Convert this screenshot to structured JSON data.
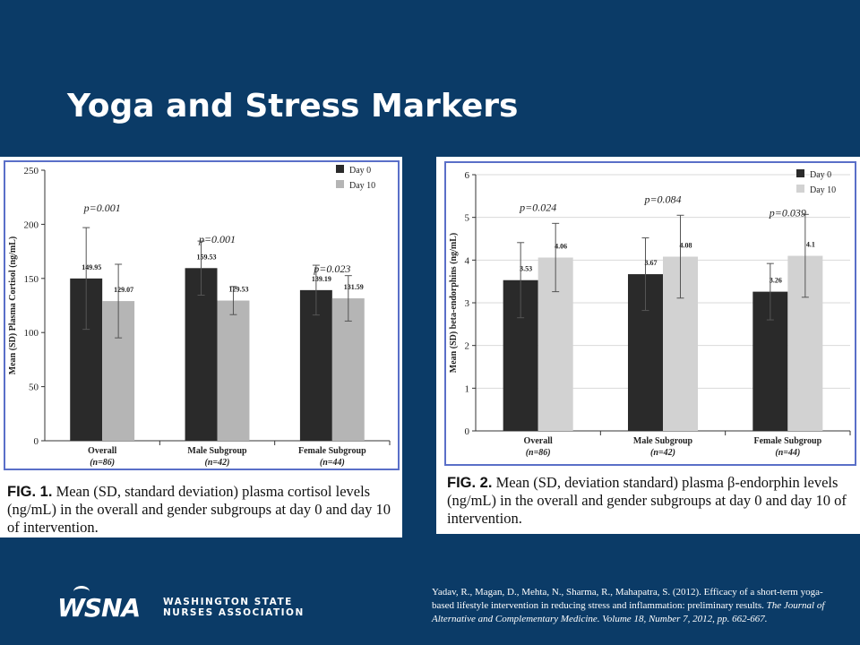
{
  "slide": {
    "title": "Yoga and Stress Markers",
    "citation_line1": "Yadav, R., Magan, D., Mehta, N., Sharma, R., Mahapatra, S. (2012). Efficacy of a short-term yoga-based lifestyle intervention in reducing stress and inflammation: preliminary results.",
    "citation_journal": "The Journal of Alternative and Complementary Medicine. Volume 18, Number 7, 2012, pp. 662-667.",
    "logo_mark": "WSNA",
    "logo_line1": "WASHINGTON STATE",
    "logo_line2": "NURSES ASSOCIATION"
  },
  "figures": [
    {
      "caption_label": "FIG. 1.",
      "caption_text": "Mean (SD, standard deviation) plasma cortisol levels (ng/mL) in the overall and gender subgroups at day 0 and day 10 of intervention."
    },
    {
      "caption_label": "FIG. 2.",
      "caption_text": "Mean (SD, deviation standard) plasma β-endorphin levels (ng/mL) in the overall and gender subgroups at day 0 and day 10 of intervention."
    }
  ],
  "chart_data": [
    {
      "type": "bar",
      "ylabel": "Mean (SD) Plasma Cortisol (ng/mL)",
      "ylim": [
        0,
        250
      ],
      "yticks": [
        0,
        50,
        100,
        150,
        200,
        250
      ],
      "categories": [
        "Overall",
        "Male Subgroup",
        "Female Subgroup"
      ],
      "category_n": [
        "(n=86)",
        "(n=42)",
        "(n=44)"
      ],
      "series": [
        {
          "name": "Day 0",
          "color": "#2a2a2a",
          "values": [
            149.95,
            159.53,
            139.19
          ],
          "errors": [
            47,
            25,
            23
          ],
          "labels": [
            "149.95",
            "159.53",
            "139.19"
          ]
        },
        {
          "name": "Day 10",
          "color": "#b5b5b5",
          "values": [
            129.07,
            129.53,
            131.59
          ],
          "errors": [
            34,
            13,
            21
          ],
          "labels": [
            "129.07",
            "129.53",
            "131.59"
          ]
        }
      ],
      "pvalues": [
        "p=0.001",
        "p=0.001",
        "p=0.023"
      ],
      "legend_position": "top-right",
      "grid": false
    },
    {
      "type": "bar",
      "ylabel": "Mean (SD) beta-endorphins (ng/mL)",
      "ylim": [
        0,
        6
      ],
      "yticks": [
        0,
        1,
        2,
        3,
        4,
        5,
        6
      ],
      "categories": [
        "Overall",
        "Male Subgroup",
        "Female Subgroup"
      ],
      "category_n": [
        "(n=86)",
        "(n=42)",
        "(n=44)"
      ],
      "series": [
        {
          "name": "Day 0",
          "color": "#2a2a2a",
          "values": [
            3.53,
            3.67,
            3.26
          ],
          "errors": [
            0.88,
            0.85,
            0.66
          ],
          "labels": [
            "3.53",
            "3.67",
            "3.26"
          ]
        },
        {
          "name": "Day 10",
          "color": "#d2d2d2",
          "values": [
            4.06,
            4.08,
            4.1
          ],
          "errors": [
            0.8,
            0.97,
            0.97
          ],
          "labels": [
            "4.06",
            "4.08",
            "4.1"
          ]
        }
      ],
      "pvalues": [
        "p=0.024",
        "p=0.084",
        "p=0.039"
      ],
      "legend_position": "top-right",
      "grid": true
    }
  ]
}
